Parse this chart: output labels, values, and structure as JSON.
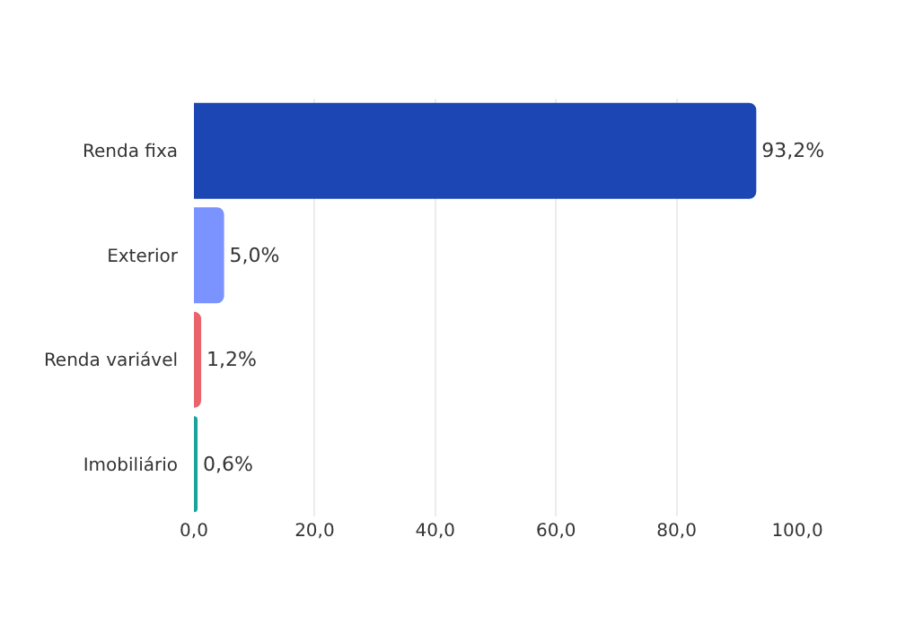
{
  "chart_data": {
    "type": "bar",
    "orientation": "horizontal",
    "categories": [
      "Renda fixa",
      "Exterior",
      "Renda variável",
      "Imobiliário"
    ],
    "values": [
      93.2,
      5.0,
      1.2,
      0.6
    ],
    "colors": [
      "#1c46b4",
      "#7b93ff",
      "#e8636b",
      "#1aa39a"
    ],
    "value_labels": [
      "93,2%",
      "5,0%",
      "1,2%",
      "0,6%"
    ],
    "xlim": [
      0,
      100
    ],
    "xticks": [
      {
        "value": 0,
        "label": "0,0"
      },
      {
        "value": 20,
        "label": "20,0"
      },
      {
        "value": 40,
        "label": "40,0"
      },
      {
        "value": 60,
        "label": "60,0"
      },
      {
        "value": 80,
        "label": "80,0"
      },
      {
        "value": 100,
        "label": "100,0"
      }
    ],
    "grid": "x"
  }
}
